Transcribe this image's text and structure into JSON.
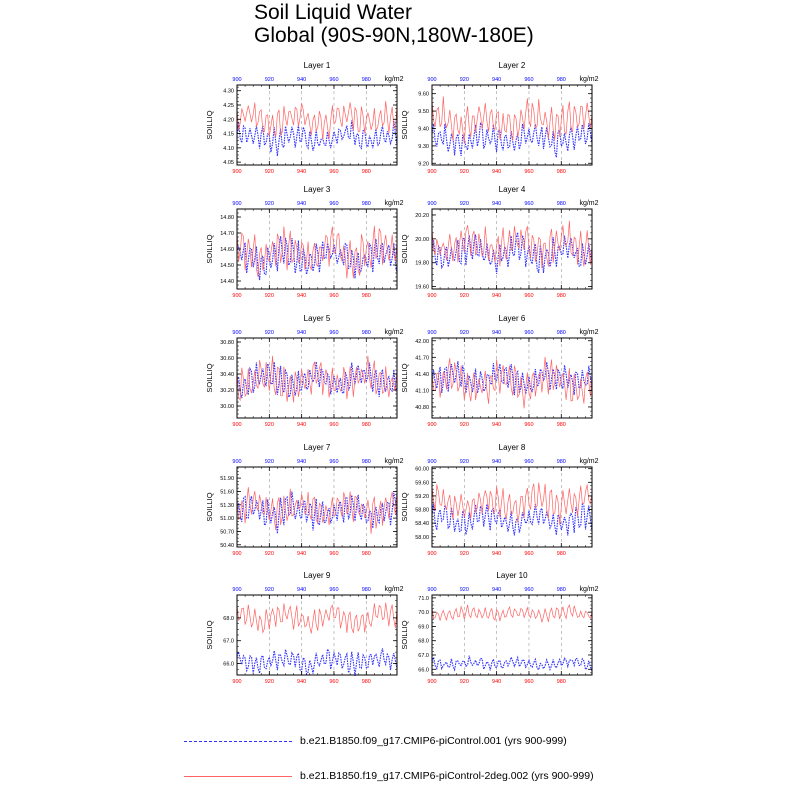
{
  "figure": {
    "title_line1": "Soil Liquid Water",
    "title_line2": "Global (90S-90N,180W-180E)",
    "legend": [
      {
        "label": "b.e21.B1850.f09_g17.CMIP6-piControl.001 (yrs 900-999)",
        "color": "#3232ff",
        "style": "dashed"
      },
      {
        "label": "b.e21.B1850.f19_g17.CMIP6-piControl-2deg.002 (yrs 900-999)",
        "color": "#ff6464",
        "style": "solid"
      }
    ]
  },
  "chart_data": [
    {
      "type": "line",
      "title": "Layer 1",
      "ylabel": "SOILLIQ",
      "units": "kg/m2",
      "xlim": [
        900,
        999
      ],
      "ylim": [
        4.04,
        4.32
      ],
      "yticks": [
        "4.05",
        "4.10",
        "4.15",
        "4.20",
        "4.25",
        "4.30"
      ],
      "xticks": [
        "900",
        "920",
        "940",
        "960",
        "980"
      ],
      "series": [
        {
          "name": "b.e21.B1850.f09_g17.CMIP6-piControl.001",
          "color": "#3232ff",
          "mean": 4.135,
          "amp": 0.035,
          "x_start": 900,
          "x_end": 999
        },
        {
          "name": "b.e21.B1850.f19_g17.CMIP6-piControl-2deg.002",
          "color": "#ff6464",
          "mean": 4.2,
          "amp": 0.04,
          "x_start": 900,
          "x_end": 999
        }
      ]
    },
    {
      "type": "line",
      "title": "Layer 2",
      "ylabel": "SOILLIQ",
      "units": "kg/m2",
      "xlim": [
        900,
        999
      ],
      "ylim": [
        9.19,
        9.65
      ],
      "yticks": [
        "9.20",
        "9.30",
        "9.40",
        "9.50",
        "9.60"
      ],
      "xticks": [
        "900",
        "920",
        "940",
        "960",
        "980"
      ],
      "series": [
        {
          "name": "b.e21.B1850.f09_g17.CMIP6-piControl.001",
          "color": "#3232ff",
          "mean": 9.34,
          "amp": 0.06,
          "x_start": 900,
          "x_end": 999
        },
        {
          "name": "b.e21.B1850.f19_g17.CMIP6-piControl-2deg.002",
          "color": "#ff6464",
          "mean": 9.45,
          "amp": 0.08,
          "x_start": 900,
          "x_end": 999
        }
      ]
    },
    {
      "type": "line",
      "title": "Layer 3",
      "ylabel": "SOILLIQ",
      "units": "kg/m2",
      "xlim": [
        900,
        999
      ],
      "ylim": [
        14.35,
        14.85
      ],
      "yticks": [
        "14.40",
        "14.50",
        "14.60",
        "14.70",
        "14.80"
      ],
      "xticks": [
        "900",
        "920",
        "940",
        "960",
        "980"
      ],
      "series": [
        {
          "name": "b.e21.B1850.f09_g17.CMIP6-piControl.001",
          "color": "#3232ff",
          "mean": 14.55,
          "amp": 0.08,
          "x_start": 900,
          "x_end": 999
        },
        {
          "name": "b.e21.B1850.f19_g17.CMIP6-piControl-2deg.002",
          "color": "#ff6464",
          "mean": 14.58,
          "amp": 0.1,
          "x_start": 900,
          "x_end": 999
        }
      ]
    },
    {
      "type": "line",
      "title": "Layer 4",
      "ylabel": "SOILLIQ",
      "units": "kg/m2",
      "xlim": [
        900,
        999
      ],
      "ylim": [
        19.58,
        20.25
      ],
      "yticks": [
        "19.60",
        "19.80",
        "20.00",
        "20.20"
      ],
      "xticks": [
        "900",
        "920",
        "940",
        "960",
        "980"
      ],
      "series": [
        {
          "name": "b.e21.B1850.f09_g17.CMIP6-piControl.001",
          "color": "#3232ff",
          "mean": 19.88,
          "amp": 0.1,
          "x_start": 900,
          "x_end": 999
        },
        {
          "name": "b.e21.B1850.f19_g17.CMIP6-piControl-2deg.002",
          "color": "#ff6464",
          "mean": 19.95,
          "amp": 0.12,
          "x_start": 900,
          "x_end": 999
        }
      ]
    },
    {
      "type": "line",
      "title": "Layer 5",
      "ylabel": "SOILLIQ",
      "units": "kg/m2",
      "xlim": [
        900,
        999
      ],
      "ylim": [
        29.85,
        30.85
      ],
      "yticks": [
        "30.00",
        "30.20",
        "30.40",
        "30.60",
        "30.80"
      ],
      "xticks": [
        "900",
        "920",
        "940",
        "960",
        "980"
      ],
      "series": [
        {
          "name": "b.e21.B1850.f09_g17.CMIP6-piControl.001",
          "color": "#3232ff",
          "mean": 30.33,
          "amp": 0.14,
          "x_start": 900,
          "x_end": 999
        },
        {
          "name": "b.e21.B1850.f19_g17.CMIP6-piControl-2deg.002",
          "color": "#ff6464",
          "mean": 30.32,
          "amp": 0.18,
          "x_start": 900,
          "x_end": 999
        }
      ]
    },
    {
      "type": "line",
      "title": "Layer 6",
      "ylabel": "SOILLIQ",
      "units": "kg/m2",
      "xlim": [
        900,
        999
      ],
      "ylim": [
        40.6,
        42.05
      ],
      "yticks": [
        "40.80",
        "41.10",
        "41.40",
        "41.70",
        "42.00"
      ],
      "xticks": [
        "900",
        "920",
        "940",
        "960",
        "980"
      ],
      "series": [
        {
          "name": "b.e21.B1850.f09_g17.CMIP6-piControl.001",
          "color": "#3232ff",
          "mean": 41.3,
          "amp": 0.2,
          "x_start": 900,
          "x_end": 999
        },
        {
          "name": "b.e21.B1850.f19_g17.CMIP6-piControl-2deg.002",
          "color": "#ff6464",
          "mean": 41.25,
          "amp": 0.25,
          "x_start": 900,
          "x_end": 999
        }
      ]
    },
    {
      "type": "line",
      "title": "Layer 7",
      "ylabel": "SOILLIQ",
      "units": "kg/m2",
      "xlim": [
        900,
        999
      ],
      "ylim": [
        50.35,
        52.15
      ],
      "yticks": [
        "50.40",
        "50.70",
        "51.00",
        "51.30",
        "51.60",
        "51.90"
      ],
      "xticks": [
        "900",
        "920",
        "940",
        "960",
        "980"
      ],
      "series": [
        {
          "name": "b.e21.B1850.f09_g17.CMIP6-piControl.001",
          "color": "#3232ff",
          "mean": 51.15,
          "amp": 0.28,
          "x_start": 900,
          "x_end": 999
        },
        {
          "name": "b.e21.B1850.f19_g17.CMIP6-piControl-2deg.002",
          "color": "#ff6464",
          "mean": 51.2,
          "amp": 0.3,
          "x_start": 900,
          "x_end": 999
        }
      ]
    },
    {
      "type": "line",
      "title": "Layer 8",
      "ylabel": "SOILLIQ",
      "units": "kg/m2",
      "xlim": [
        900,
        999
      ],
      "ylim": [
        57.7,
        60.05
      ],
      "yticks": [
        "58.00",
        "58.40",
        "58.80",
        "59.20",
        "59.60",
        "60.00"
      ],
      "xticks": [
        "900",
        "920",
        "940",
        "960",
        "980"
      ],
      "series": [
        {
          "name": "b.e21.B1850.f09_g17.CMIP6-piControl.001",
          "color": "#3232ff",
          "mean": 58.5,
          "amp": 0.3,
          "x_start": 900,
          "x_end": 999
        },
        {
          "name": "b.e21.B1850.f19_g17.CMIP6-piControl-2deg.002",
          "color": "#ff6464",
          "mean": 59.0,
          "amp": 0.35,
          "x_start": 900,
          "x_end": 999
        }
      ]
    },
    {
      "type": "line",
      "title": "Layer 9",
      "ylabel": "SOILLIQ",
      "units": "kg/m2",
      "xlim": [
        900,
        999
      ],
      "ylim": [
        65.5,
        69.0
      ],
      "yticks": [
        "66.0",
        "67.0",
        "68.0"
      ],
      "xticks": [
        "900",
        "920",
        "940",
        "960",
        "980"
      ],
      "series": [
        {
          "name": "b.e21.B1850.f09_g17.CMIP6-piControl.001",
          "color": "#3232ff",
          "mean": 66.1,
          "amp": 0.35,
          "x_start": 900,
          "x_end": 999
        },
        {
          "name": "b.e21.B1850.f19_g17.CMIP6-piControl-2deg.002",
          "color": "#ff6464",
          "mean": 68.0,
          "amp": 0.4,
          "x_start": 900,
          "x_end": 999
        }
      ]
    },
    {
      "type": "line",
      "title": "Layer 10",
      "ylabel": "SOILLIQ",
      "units": "kg/m2",
      "xlim": [
        900,
        999
      ],
      "ylim": [
        65.6,
        71.2
      ],
      "yticks": [
        "66.0",
        "67.0",
        "68.0",
        "69.0",
        "70.0",
        "71.0"
      ],
      "xticks": [
        "900",
        "920",
        "940",
        "960",
        "980"
      ],
      "series": [
        {
          "name": "b.e21.B1850.f09_g17.CMIP6-piControl.001",
          "color": "#3232ff",
          "mean": 66.4,
          "amp": 0.3,
          "x_start": 900,
          "x_end": 999
        },
        {
          "name": "b.e21.B1850.f19_g17.CMIP6-piControl-2deg.002",
          "color": "#ff6464",
          "mean": 69.9,
          "amp": 0.35,
          "x_start": 900,
          "x_end": 999
        }
      ]
    }
  ]
}
